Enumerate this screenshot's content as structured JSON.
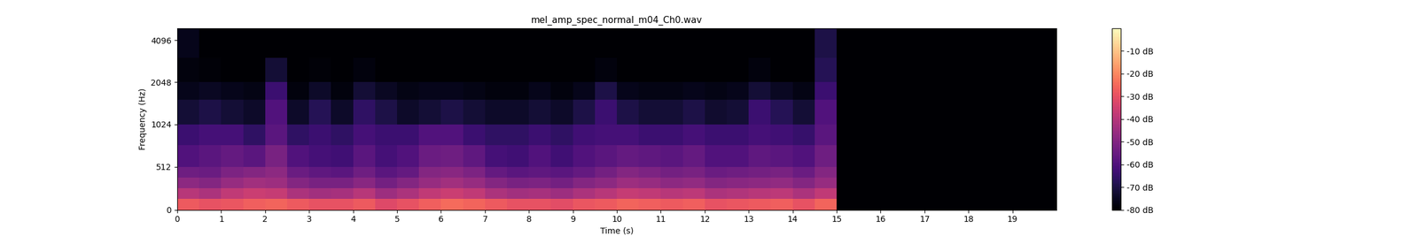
{
  "chart_data": {
    "type": "heatmap",
    "title": "mel_amp_spec_normal_m04_Ch0.wav",
    "x_label": "Time (s)",
    "y_label": "Frequency (Hz)",
    "xlim": [
      0,
      20
    ],
    "xticks": [
      0,
      1,
      2,
      3,
      4,
      5,
      6,
      7,
      8,
      9,
      10,
      11,
      12,
      13,
      14,
      15,
      16,
      17,
      18,
      19
    ],
    "ylim": [
      0,
      5000
    ],
    "yticks": [
      0,
      512,
      1024,
      2048,
      4096
    ],
    "log": "y",
    "color": "magma",
    "x_edges": [
      0,
      0.5,
      1,
      1.5,
      2,
      2.5,
      3,
      3.5,
      4,
      4.5,
      5,
      5.5,
      6,
      6.5,
      7,
      7.5,
      8,
      8.5,
      9,
      9.5,
      10,
      10.5,
      11,
      11.5,
      12,
      12.5,
      13,
      13.5,
      14,
      14.5,
      15,
      15.5,
      16,
      16.5,
      17,
      17.5,
      18,
      18.5,
      19,
      19.5,
      20
    ],
    "y_edges": [
      0,
      128,
      256,
      384,
      512,
      768,
      1024,
      1536,
      2048,
      3072,
      4096,
      5000
    ],
    "cells": [
      [
        -28,
        -30,
        -29,
        -27,
        -26,
        -28,
        -30,
        -30,
        -28,
        -32,
        -30,
        -27,
        -25,
        -26,
        -28,
        -30,
        -30,
        -31,
        -29,
        -28,
        -26,
        -27,
        -28,
        -27,
        -30,
        -29,
        -28,
        -27,
        -30,
        -26,
        -80,
        -80,
        -80,
        -80,
        -80,
        -80,
        -80,
        -80,
        -80,
        -80
      ],
      [
        -40,
        -42,
        -38,
        -36,
        -37,
        -42,
        -44,
        -43,
        -40,
        -45,
        -42,
        -38,
        -36,
        -38,
        -42,
        -44,
        -43,
        -45,
        -42,
        -40,
        -37,
        -38,
        -40,
        -39,
        -42,
        -41,
        -40,
        -39,
        -42,
        -38,
        -80,
        -80,
        -80,
        -80,
        -80,
        -80,
        -80,
        -80,
        -80,
        -80
      ],
      [
        -48,
        -50,
        -46,
        -44,
        -45,
        -50,
        -52,
        -52,
        -49,
        -53,
        -50,
        -46,
        -44,
        -46,
        -50,
        -52,
        -51,
        -53,
        -50,
        -48,
        -45,
        -46,
        -48,
        -47,
        -50,
        -49,
        -48,
        -47,
        -50,
        -46,
        -80,
        -80,
        -80,
        -80,
        -80,
        -80,
        -80,
        -80,
        -80,
        -80
      ],
      [
        -54,
        -55,
        -51,
        -50,
        -48,
        -55,
        -57,
        -58,
        -54,
        -58,
        -56,
        -50,
        -49,
        -51,
        -56,
        -58,
        -57,
        -58,
        -56,
        -53,
        -50,
        -51,
        -53,
        -52,
        -55,
        -54,
        -53,
        -52,
        -55,
        -50,
        -80,
        -80,
        -80,
        -80,
        -80,
        -80,
        -80,
        -80,
        -80,
        -80
      ],
      [
        -60,
        -58,
        -56,
        -58,
        -52,
        -60,
        -62,
        -63,
        -58,
        -62,
        -60,
        -55,
        -54,
        -57,
        -62,
        -63,
        -60,
        -63,
        -60,
        -58,
        -56,
        -57,
        -58,
        -56,
        -60,
        -60,
        -57,
        -58,
        -60,
        -54,
        -80,
        -80,
        -80,
        -80,
        -80,
        -80,
        -80,
        -80,
        -80,
        -80
      ],
      [
        -64,
        -62,
        -62,
        -66,
        -58,
        -66,
        -64,
        -66,
        -62,
        -64,
        -64,
        -60,
        -60,
        -64,
        -66,
        -66,
        -64,
        -66,
        -63,
        -62,
        -62,
        -64,
        -64,
        -62,
        -64,
        -64,
        -62,
        -63,
        -65,
        -58,
        -80,
        -80,
        -80,
        -80,
        -80,
        -80,
        -80,
        -80,
        -80,
        -80
      ],
      [
        -72,
        -70,
        -72,
        -74,
        -60,
        -74,
        -68,
        -74,
        -66,
        -70,
        -74,
        -72,
        -70,
        -72,
        -74,
        -74,
        -72,
        -74,
        -70,
        -64,
        -70,
        -72,
        -72,
        -70,
        -73,
        -72,
        -64,
        -68,
        -72,
        -60,
        -80,
        -80,
        -80,
        -80,
        -80,
        -80,
        -80,
        -80,
        -80,
        -80
      ],
      [
        -76,
        -75,
        -76,
        -77,
        -64,
        -78,
        -74,
        -78,
        -72,
        -75,
        -77,
        -76,
        -76,
        -77,
        -78,
        -78,
        -76,
        -78,
        -76,
        -70,
        -76,
        -77,
        -77,
        -76,
        -77,
        -76,
        -72,
        -75,
        -77,
        -64,
        -80,
        -80,
        -80,
        -80,
        -80,
        -80,
        -80,
        -80,
        -80,
        -80
      ],
      [
        -78,
        -79,
        -80,
        -80,
        -72,
        -80,
        -79,
        -80,
        -78,
        -80,
        -80,
        -80,
        -80,
        -80,
        -80,
        -80,
        -80,
        -80,
        -80,
        -78,
        -80,
        -80,
        -80,
        -80,
        -80,
        -80,
        -78,
        -80,
        -80,
        -68,
        -80,
        -80,
        -80,
        -80,
        -80,
        -80,
        -80,
        -80,
        -80,
        -80
      ],
      [
        -76,
        -80,
        -80,
        -80,
        -80,
        -80,
        -80,
        -80,
        -80,
        -80,
        -80,
        -80,
        -80,
        -80,
        -80,
        -80,
        -80,
        -80,
        -80,
        -80,
        -80,
        -80,
        -80,
        -80,
        -80,
        -80,
        -80,
        -80,
        -80,
        -70,
        -80,
        -80,
        -80,
        -80,
        -80,
        -80,
        -80,
        -80,
        -80,
        -80
      ],
      [
        -76,
        -80,
        -80,
        -80,
        -80,
        -80,
        -80,
        -80,
        -80,
        -80,
        -80,
        -80,
        -80,
        -80,
        -80,
        -80,
        -80,
        -80,
        -80,
        -80,
        -80,
        -80,
        -80,
        -80,
        -80,
        -80,
        -80,
        -80,
        -80,
        -70,
        -80,
        -80,
        -80,
        -80,
        -80,
        -80,
        -80,
        -80,
        -80,
        -80
      ]
    ],
    "colorbar_range": [
      -80,
      0
    ],
    "colorbar_ticks": [
      {
        "value": -80,
        "label": "-80 dB"
      },
      {
        "value": -70,
        "label": "-70 dB"
      },
      {
        "value": -60,
        "label": "-60 dB"
      },
      {
        "value": -50,
        "label": "-50 dB"
      },
      {
        "value": -40,
        "label": "-40 dB"
      },
      {
        "value": -30,
        "label": "-30 dB"
      },
      {
        "value": -20,
        "label": "-20 dB"
      },
      {
        "value": -10,
        "label": "-10 dB"
      }
    ]
  }
}
